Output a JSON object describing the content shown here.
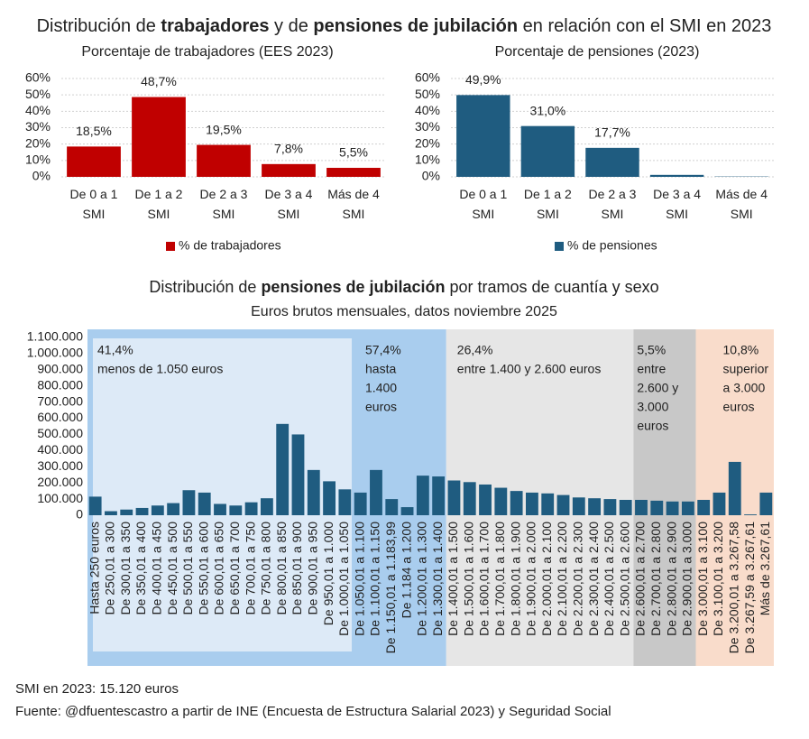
{
  "title": [
    "Distribución de ",
    "trabajadores",
    " y de ",
    "pensiones de jubilación",
    " en relación con el SMI en 2023"
  ],
  "chart_data": [
    {
      "type": "bar",
      "title": "Porcentaje de trabajadores (EES 2023)",
      "categories": [
        "De 0 a 1 SMI",
        "De 1 a 2 SMI",
        "De 2 a 3 SMI",
        "De 3 a 4 SMI",
        "Más de 4 SMI"
      ],
      "series": [
        {
          "name": "% de trabajadores",
          "color": "#c00000",
          "values": [
            18.5,
            48.7,
            19.5,
            7.8,
            5.5
          ],
          "value_labels": [
            "18,5%",
            "48,7%",
            "19,5%",
            "7,8%",
            "5,5%"
          ]
        }
      ],
      "ylim": [
        0,
        60
      ],
      "yticks": [
        {
          "value": 0,
          "label": "0%"
        },
        {
          "value": 10,
          "label": "10%"
        },
        {
          "value": 20,
          "label": "20%"
        },
        {
          "value": 30,
          "label": "30%"
        },
        {
          "value": 40,
          "label": "40%"
        },
        {
          "value": 50,
          "label": "50%"
        },
        {
          "value": 60,
          "label": "60%"
        }
      ],
      "grid": true,
      "legend": "bottom"
    },
    {
      "type": "bar",
      "title": "Porcentaje de pensiones (2023)",
      "categories": [
        "De 0 a 1 SMI",
        "De 1 a 2 SMI",
        "De 2 a 3 SMI",
        "De 3 a 4 SMI",
        "Más de 4 SMI"
      ],
      "series": [
        {
          "name": "% de pensiones",
          "color": "#1f5c80",
          "values": [
            49.9,
            31.0,
            17.7,
            1.2,
            0.2
          ],
          "value_labels": [
            "49,9%",
            "31,0%",
            "17,7%",
            null,
            null
          ]
        }
      ],
      "ylim": [
        0,
        60
      ],
      "yticks": [
        {
          "value": 0,
          "label": "0%"
        },
        {
          "value": 10,
          "label": "10%"
        },
        {
          "value": 20,
          "label": "20%"
        },
        {
          "value": 30,
          "label": "30%"
        },
        {
          "value": 40,
          "label": "40%"
        },
        {
          "value": 50,
          "label": "50%"
        },
        {
          "value": 60,
          "label": "60%"
        }
      ],
      "grid": true,
      "legend": "bottom"
    },
    {
      "type": "bar",
      "title": [
        "Distribución de ",
        "pensiones de jubilación",
        " por tramos de cuantía y sexo"
      ],
      "subtitle": "Euros brutos mensuales, datos noviembre 2025",
      "categories": [
        "Hasta 250 euros",
        "De 250,01 a 300",
        "De 300,01 a 350",
        "De 350,01 a 400",
        "De 400,01 a 450",
        "De 450,01 a 500",
        "De 500,01 a 550",
        "De 550,01 a 600",
        "De 600,01 a 650",
        "De 650,01 a 700",
        "De 700,01 a 750",
        "De 750,01 a 800",
        "De 800,01 a 850",
        "De 850,01 a 900",
        "De 900,01 a 950",
        "De 950,01 a 1.000",
        "De 1.000,01 a 1.050",
        "De 1.050,01 a 1.100",
        "De 1.100,01 a 1.150",
        "De 1.150,01 a 1.183,99",
        "De 1.184 a 1.200",
        "De 1.200,01 a 1.300",
        "De 1.300,01 a 1.400",
        "De 1.400,01 a 1.500",
        "De 1.500,01 a 1.600",
        "De 1.600,01 a 1.700",
        "De 1.700,01 a 1.800",
        "De 1.800,01 a 1.900",
        "De 1.900,01 a 2.000",
        "De 2.000,01 a 2.100",
        "De 2.100,01 a 2.200",
        "De 2.200,01 a 2.300",
        "De 2.300,01 a 2.400",
        "De 2.400,01 a 2.500",
        "De 2.500,01 a 2.600",
        "De 2.600,01 a 2.700",
        "De 2.700,01 a 2.800",
        "De 2.800,01 a 2.900",
        "De 2.900,01 a 3.000",
        "De 3.000,01 a 3.100",
        "De 3.100,01 a 3.200",
        "De 3.200,01 a 3.267,58",
        "De 3.267,59 a 3.267,61",
        "Más de 3.267,61"
      ],
      "values": [
        115000,
        25000,
        35000,
        45000,
        60000,
        75000,
        155000,
        140000,
        70000,
        60000,
        80000,
        105000,
        565000,
        500000,
        280000,
        210000,
        160000,
        140000,
        280000,
        100000,
        50000,
        245000,
        240000,
        215000,
        205000,
        190000,
        170000,
        150000,
        140000,
        135000,
        125000,
        110000,
        105000,
        100000,
        95000,
        95000,
        90000,
        85000,
        85000,
        95000,
        140000,
        330000,
        5000,
        140000
      ],
      "color": "#1f5c80",
      "ylim": [
        0,
        1100000
      ],
      "yticks": [
        0,
        {
          "value": 100000,
          "label": "100.000"
        },
        {
          "value": 200000,
          "label": "200.000"
        },
        {
          "value": 300000,
          "label": "300.000"
        },
        {
          "value": 400000,
          "label": "400.000"
        },
        {
          "value": 500000,
          "label": "500.000"
        },
        {
          "value": 600000,
          "label": "600.000"
        },
        {
          "value": 700000,
          "label": "700.000"
        },
        {
          "value": 800000,
          "label": "800.000"
        },
        {
          "value": 900000,
          "label": "900.000"
        },
        {
          "value": 1000000,
          "label": "1.000.000"
        },
        {
          "value": 1100000,
          "label": "1.100.000"
        }
      ],
      "grid": false,
      "annotations": [
        {
          "lines": [
            "41,4%",
            "menos de 1.050 euros"
          ]
        },
        {
          "lines": [
            "57,4%",
            "hasta",
            "1.400",
            "euros"
          ]
        },
        {
          "lines": [
            "26,4%",
            "entre 1.400 y 2.600 euros"
          ]
        },
        {
          "lines": [
            "5,5%",
            "entre",
            "2.600 y",
            "3.000",
            "euros"
          ]
        },
        {
          "lines": [
            "10,8%",
            "superior",
            "a 3.000",
            "euros"
          ]
        }
      ]
    }
  ],
  "notes": [
    "SMI en 2023: 15.120 euros",
    "Fuente: @dfuentescastro a partir de INE (Encuesta de Estructura Salarial 2023) y Seguridad Social"
  ]
}
